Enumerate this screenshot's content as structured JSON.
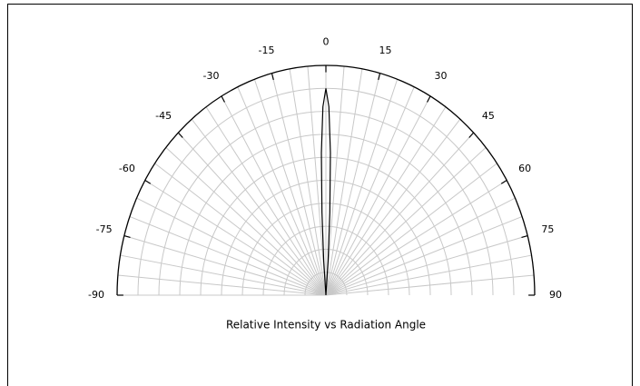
{
  "chart_data": {
    "type": "polar",
    "title": "Relative Intensity vs Radiation Angle",
    "x": [
      -5,
      -4,
      -3,
      -2,
      -1,
      0,
      1,
      2,
      3,
      4,
      5
    ],
    "values": [
      0,
      0.15,
      0.36,
      0.62,
      0.82,
      0.9,
      0.82,
      0.62,
      0.36,
      0.15,
      0
    ],
    "color": "#000000",
    "xlim": [
      -90,
      90
    ],
    "xticks": [
      -90,
      -75,
      -60,
      -45,
      -30,
      -15,
      0,
      15,
      30,
      45,
      60,
      75,
      90
    ],
    "angle_grid_subdivisions": 3,
    "ylim": [
      0,
      1
    ],
    "yticks": [
      0.1,
      0.2,
      0.3,
      0.4,
      0.5,
      0.6,
      0.7,
      0.8,
      0.9,
      1
    ],
    "grid": true
  }
}
